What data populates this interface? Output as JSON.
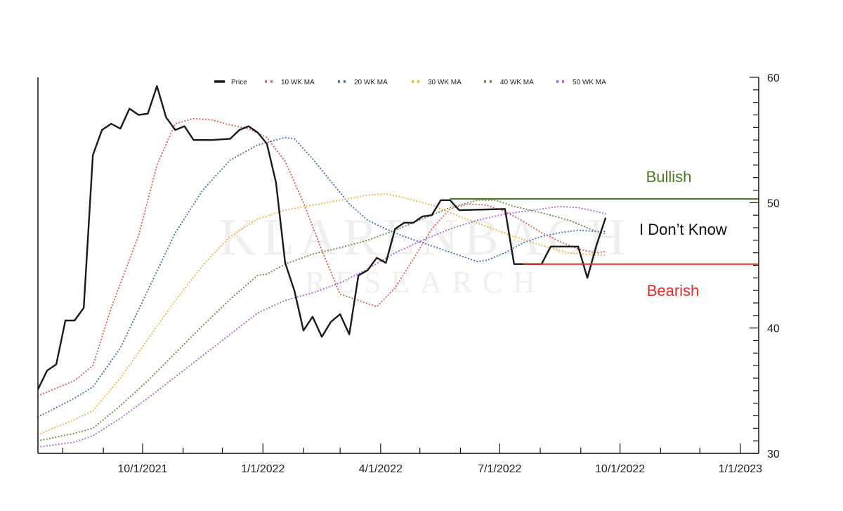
{
  "chart_data": {
    "type": "line",
    "x_axis": {
      "min": "2021-07-13",
      "max": "2023-01-15",
      "ticks": [
        {
          "date": "2021-10-01",
          "label": "10/1/2021"
        },
        {
          "date": "2022-01-01",
          "label": "1/1/2022"
        },
        {
          "date": "2022-04-01",
          "label": "4/1/2022"
        },
        {
          "date": "2022-07-01",
          "label": "7/1/2022"
        },
        {
          "date": "2022-10-01",
          "label": "10/1/2022"
        },
        {
          "date": "2023-01-01",
          "label": "1/1/2023"
        }
      ]
    },
    "y_axis": {
      "position": "right",
      "min": 30,
      "max": 60,
      "ticks": [
        30,
        40,
        50,
        60
      ]
    },
    "legend": {
      "position": "top",
      "items": [
        {
          "series": "price",
          "label": "Price"
        },
        {
          "series": "ma10",
          "label": "10 WK MA"
        },
        {
          "series": "ma20",
          "label": "20 WK MA"
        },
        {
          "series": "ma30",
          "label": "30 WK MA"
        },
        {
          "series": "ma40",
          "label": "40 WK MA"
        },
        {
          "series": "ma50",
          "label": "50 WK MA"
        }
      ]
    },
    "series": [
      {
        "id": "price",
        "name": "Price",
        "color": "#1a1a1a",
        "style": "solid",
        "points": [
          [
            "2021-07-13",
            35.1
          ],
          [
            "2021-07-20",
            36.6
          ],
          [
            "2021-07-27",
            37.1
          ],
          [
            "2021-08-03",
            40.6
          ],
          [
            "2021-08-10",
            40.6
          ],
          [
            "2021-08-17",
            41.6
          ],
          [
            "2021-08-24",
            53.8
          ],
          [
            "2021-08-31",
            55.8
          ],
          [
            "2021-09-07",
            56.3
          ],
          [
            "2021-09-14",
            55.9
          ],
          [
            "2021-09-21",
            57.5
          ],
          [
            "2021-09-28",
            57.0
          ],
          [
            "2021-10-05",
            57.1
          ],
          [
            "2021-10-12",
            59.3
          ],
          [
            "2021-10-19",
            56.8
          ],
          [
            "2021-10-26",
            55.8
          ],
          [
            "2021-11-02",
            56.1
          ],
          [
            "2021-11-09",
            55.0
          ],
          [
            "2021-11-23",
            55.0
          ],
          [
            "2021-12-07",
            55.1
          ],
          [
            "2021-12-14",
            55.8
          ],
          [
            "2021-12-21",
            56.1
          ],
          [
            "2021-12-28",
            55.6
          ],
          [
            "2022-01-04",
            54.7
          ],
          [
            "2022-01-11",
            51.6
          ],
          [
            "2022-01-18",
            45.2
          ],
          [
            "2022-01-25",
            43.0
          ],
          [
            "2022-02-01",
            39.8
          ],
          [
            "2022-02-08",
            40.9
          ],
          [
            "2022-02-15",
            39.3
          ],
          [
            "2022-02-22",
            40.5
          ],
          [
            "2022-03-01",
            41.1
          ],
          [
            "2022-03-08",
            39.5
          ],
          [
            "2022-03-15",
            44.2
          ],
          [
            "2022-03-22",
            44.6
          ],
          [
            "2022-03-29",
            45.6
          ],
          [
            "2022-04-05",
            45.2
          ],
          [
            "2022-04-12",
            47.9
          ],
          [
            "2022-04-19",
            48.4
          ],
          [
            "2022-04-26",
            48.4
          ],
          [
            "2022-05-03",
            48.9
          ],
          [
            "2022-05-10",
            49.0
          ],
          [
            "2022-05-17",
            50.2
          ],
          [
            "2022-05-24",
            50.2
          ],
          [
            "2022-05-31",
            49.4
          ],
          [
            "2022-07-05",
            49.5
          ],
          [
            "2022-07-12",
            45.1
          ],
          [
            "2022-07-19",
            45.1
          ],
          [
            "2022-07-26",
            45.1
          ],
          [
            "2022-08-02",
            45.1
          ],
          [
            "2022-08-09",
            46.5
          ],
          [
            "2022-08-23",
            46.5
          ],
          [
            "2022-08-30",
            46.5
          ],
          [
            "2022-09-06",
            44.0
          ],
          [
            "2022-09-13",
            46.6
          ],
          [
            "2022-09-20",
            48.8
          ]
        ]
      },
      {
        "id": "ma10",
        "name": "10 WK MA",
        "color": "#e8524a",
        "style": "dotted",
        "points": [
          [
            "2021-07-13",
            34.6
          ],
          [
            "2021-08-10",
            35.8
          ],
          [
            "2021-08-24",
            37.0
          ],
          [
            "2021-09-07",
            41.6
          ],
          [
            "2021-09-28",
            47.4
          ],
          [
            "2021-10-12",
            53.0
          ],
          [
            "2021-10-26",
            56.3
          ],
          [
            "2021-11-09",
            56.7
          ],
          [
            "2021-11-23",
            56.6
          ],
          [
            "2021-12-07",
            56.2
          ],
          [
            "2021-12-21",
            55.9
          ],
          [
            "2022-01-04",
            55.2
          ],
          [
            "2022-01-18",
            53.3
          ],
          [
            "2022-02-01",
            50.0
          ],
          [
            "2022-02-15",
            46.2
          ],
          [
            "2022-03-01",
            42.7
          ],
          [
            "2022-03-15",
            42.2
          ],
          [
            "2022-03-29",
            41.7
          ],
          [
            "2022-04-12",
            43.2
          ],
          [
            "2022-04-26",
            45.5
          ],
          [
            "2022-05-10",
            47.9
          ],
          [
            "2022-05-24",
            49.5
          ],
          [
            "2022-06-07",
            49.9
          ],
          [
            "2022-06-21",
            49.8
          ],
          [
            "2022-07-05",
            49.3
          ],
          [
            "2022-07-19",
            48.5
          ],
          [
            "2022-08-02",
            47.6
          ],
          [
            "2022-08-16",
            46.9
          ],
          [
            "2022-08-30",
            46.3
          ],
          [
            "2022-09-13",
            46.0
          ],
          [
            "2022-09-20",
            46.1
          ]
        ]
      },
      {
        "id": "ma20",
        "name": "20 WK MA",
        "color": "#3a6bb5",
        "style": "dotted",
        "points": [
          [
            "2021-07-13",
            32.9
          ],
          [
            "2021-08-10",
            34.4
          ],
          [
            "2021-08-24",
            35.3
          ],
          [
            "2021-09-14",
            38.4
          ],
          [
            "2021-10-05",
            43.0
          ],
          [
            "2021-10-26",
            47.6
          ],
          [
            "2021-11-16",
            51.0
          ],
          [
            "2021-12-07",
            53.4
          ],
          [
            "2021-12-28",
            54.6
          ],
          [
            "2022-01-18",
            55.2
          ],
          [
            "2022-01-25",
            55.1
          ],
          [
            "2022-02-08",
            53.5
          ],
          [
            "2022-02-22",
            51.7
          ],
          [
            "2022-03-08",
            49.9
          ],
          [
            "2022-03-22",
            48.6
          ],
          [
            "2022-04-05",
            47.9
          ],
          [
            "2022-04-19",
            47.3
          ],
          [
            "2022-05-03",
            46.8
          ],
          [
            "2022-05-17",
            46.3
          ],
          [
            "2022-05-31",
            45.8
          ],
          [
            "2022-06-14",
            45.3
          ],
          [
            "2022-06-21",
            45.4
          ],
          [
            "2022-07-05",
            46.0
          ],
          [
            "2022-07-19",
            46.8
          ],
          [
            "2022-08-02",
            47.3
          ],
          [
            "2022-08-16",
            47.6
          ],
          [
            "2022-08-30",
            47.8
          ],
          [
            "2022-09-13",
            47.7
          ],
          [
            "2022-09-20",
            47.7
          ]
        ]
      },
      {
        "id": "ma30",
        "name": "30 WK MA",
        "color": "#f0b13a",
        "style": "dotted",
        "points": [
          [
            "2021-07-13",
            31.5
          ],
          [
            "2021-08-10",
            32.7
          ],
          [
            "2021-08-24",
            33.4
          ],
          [
            "2021-09-14",
            36.0
          ],
          [
            "2021-10-05",
            39.1
          ],
          [
            "2021-10-26",
            42.2
          ],
          [
            "2021-11-16",
            45.0
          ],
          [
            "2021-12-07",
            47.3
          ],
          [
            "2021-12-28",
            48.7
          ],
          [
            "2022-01-18",
            49.4
          ],
          [
            "2022-02-08",
            49.8
          ],
          [
            "2022-03-01",
            50.2
          ],
          [
            "2022-03-22",
            50.6
          ],
          [
            "2022-04-05",
            50.7
          ],
          [
            "2022-04-19",
            50.4
          ],
          [
            "2022-05-10",
            49.8
          ],
          [
            "2022-05-31",
            48.9
          ],
          [
            "2022-06-21",
            48.1
          ],
          [
            "2022-07-12",
            47.3
          ],
          [
            "2022-08-02",
            46.6
          ],
          [
            "2022-08-23",
            46.0
          ],
          [
            "2022-09-13",
            45.8
          ],
          [
            "2022-09-20",
            45.8
          ]
        ]
      },
      {
        "id": "ma40",
        "name": "40 WK MA",
        "color": "#5c8a3c",
        "style": "dotted",
        "points": [
          [
            "2021-07-13",
            31.0
          ],
          [
            "2021-08-10",
            31.6
          ],
          [
            "2021-08-24",
            32.0
          ],
          [
            "2021-09-14",
            33.8
          ],
          [
            "2021-10-05",
            35.8
          ],
          [
            "2021-10-26",
            38.0
          ],
          [
            "2021-11-16",
            40.2
          ],
          [
            "2021-12-07",
            42.3
          ],
          [
            "2021-12-28",
            44.2
          ],
          [
            "2022-01-04",
            44.3
          ],
          [
            "2022-01-18",
            45.1
          ],
          [
            "2022-02-08",
            45.9
          ],
          [
            "2022-03-01",
            46.4
          ],
          [
            "2022-03-22",
            47.0
          ],
          [
            "2022-04-12",
            47.8
          ],
          [
            "2022-05-03",
            48.7
          ],
          [
            "2022-05-24",
            49.6
          ],
          [
            "2022-06-14",
            50.2
          ],
          [
            "2022-06-28",
            50.2
          ],
          [
            "2022-07-12",
            49.7
          ],
          [
            "2022-08-02",
            49.2
          ],
          [
            "2022-08-23",
            48.6
          ],
          [
            "2022-09-13",
            47.7
          ],
          [
            "2022-09-20",
            47.5
          ]
        ]
      },
      {
        "id": "ma50",
        "name": "50 WK MA",
        "color": "#a55ee0",
        "style": "dotted",
        "points": [
          [
            "2021-07-13",
            30.5
          ],
          [
            "2021-08-10",
            30.9
          ],
          [
            "2021-08-24",
            31.4
          ],
          [
            "2021-09-14",
            32.8
          ],
          [
            "2021-10-05",
            34.4
          ],
          [
            "2021-10-26",
            36.1
          ],
          [
            "2021-11-16",
            37.8
          ],
          [
            "2021-12-07",
            39.5
          ],
          [
            "2021-12-28",
            41.2
          ],
          [
            "2022-01-18",
            42.2
          ],
          [
            "2022-02-08",
            42.8
          ],
          [
            "2022-03-01",
            43.6
          ],
          [
            "2022-03-22",
            44.7
          ],
          [
            "2022-04-12",
            46.0
          ],
          [
            "2022-05-03",
            47.0
          ],
          [
            "2022-05-24",
            47.9
          ],
          [
            "2022-06-14",
            48.6
          ],
          [
            "2022-07-05",
            49.1
          ],
          [
            "2022-07-26",
            49.4
          ],
          [
            "2022-08-16",
            49.7
          ],
          [
            "2022-08-30",
            49.6
          ],
          [
            "2022-09-13",
            49.3
          ],
          [
            "2022-09-20",
            49.1
          ]
        ]
      }
    ],
    "annotations": [
      {
        "id": "bullish",
        "kind": "hline",
        "label": "Bullish",
        "color": "#4a7a24",
        "y": 50.3,
        "x_start": "2022-05-24",
        "x_end": "2023-01-15"
      },
      {
        "id": "bearish",
        "kind": "hline",
        "label": "Bearish",
        "color": "#e32b2b",
        "y": 45.1,
        "x_start": "2022-07-19",
        "x_end": "2023-01-15"
      },
      {
        "id": "unknown",
        "kind": "text",
        "label": "I Don’t Know",
        "color": "#111111"
      }
    ],
    "watermark": {
      "line1": "KLARENBACH",
      "line2": "RESEARCH"
    }
  }
}
